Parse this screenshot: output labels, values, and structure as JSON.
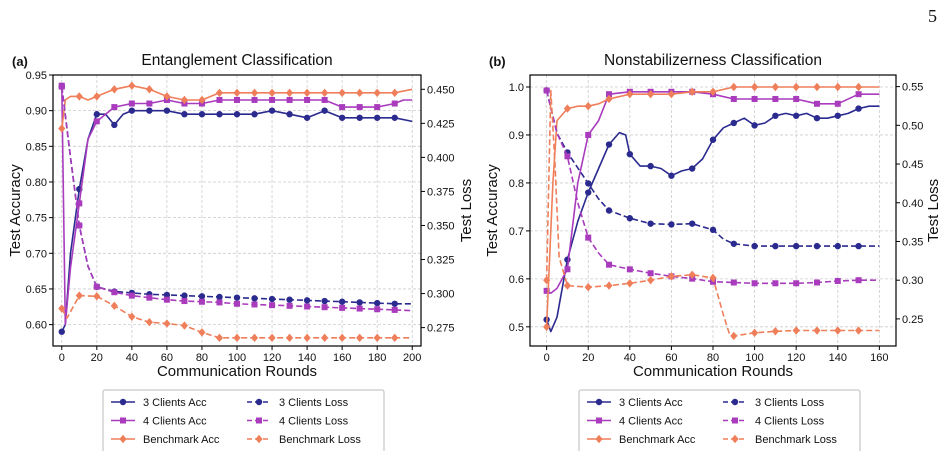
{
  "page_number": "5",
  "legend_items": {
    "acc3": "3 Clients Acc",
    "acc4": "4 Clients Acc",
    "accB": "Benchmark Acc",
    "loss3": "3 Clients Loss",
    "loss4": "4 Clients Loss",
    "lossB": "Benchmark Loss"
  },
  "colors": {
    "three_clients": "#2b2a8f",
    "four_clients": "#a93bbd",
    "benchmark": "#ef7f5a"
  },
  "chart_data": [
    {
      "panel": "(a)",
      "type": "line",
      "title": "Entanglement Classification",
      "xlabel": "Communication Rounds",
      "ylabel": "Test Accuracy",
      "y2label": "Test Loss",
      "xlim": [
        -5,
        205
      ],
      "ylim": [
        0.57,
        0.95
      ],
      "y2lim": [
        0.2615,
        0.4605
      ],
      "xticks": [
        0,
        20,
        40,
        60,
        80,
        100,
        120,
        140,
        160,
        180,
        200
      ],
      "yticks": [
        0.6,
        0.65,
        0.7,
        0.75,
        0.8,
        0.85,
        0.9,
        0.95
      ],
      "ytick_labels": [
        "0.60",
        "0.65",
        "0.70",
        "0.75",
        "0.80",
        "0.85",
        "0.90",
        "0.95"
      ],
      "y2ticks": [
        0.275,
        0.3,
        0.325,
        0.35,
        0.375,
        0.4,
        0.425,
        0.45
      ],
      "y2tick_labels": [
        "0.275",
        "0.300",
        "0.325",
        "0.350",
        "0.375",
        "0.400",
        "0.425",
        "0.450"
      ],
      "grid": true,
      "legend": "below",
      "series": [
        {
          "name": "3 Clients Acc",
          "axis": "left",
          "style": "solid",
          "marker": "circle",
          "color_key": "three_clients",
          "x": [
            0,
            2,
            5,
            10,
            15,
            20,
            25,
            30,
            35,
            40,
            50,
            60,
            70,
            80,
            90,
            100,
            110,
            120,
            130,
            140,
            150,
            160,
            170,
            180,
            190,
            200
          ],
          "y": [
            0.59,
            0.6,
            0.7,
            0.79,
            0.86,
            0.895,
            0.895,
            0.88,
            0.895,
            0.9,
            0.9,
            0.9,
            0.895,
            0.895,
            0.895,
            0.895,
            0.895,
            0.9,
            0.895,
            0.89,
            0.9,
            0.89,
            0.89,
            0.89,
            0.89,
            0.885
          ],
          "marker_x": [
            0,
            10,
            20,
            30,
            40,
            50,
            60,
            70,
            80,
            90,
            100,
            110,
            120,
            130,
            140,
            150,
            160,
            170,
            180,
            190
          ]
        },
        {
          "name": "4 Clients Acc",
          "axis": "left",
          "style": "solid",
          "marker": "square",
          "color_key": "four_clients",
          "x": [
            0,
            2,
            5,
            10,
            15,
            20,
            25,
            30,
            40,
            50,
            60,
            70,
            80,
            90,
            100,
            110,
            120,
            130,
            140,
            150,
            160,
            170,
            180,
            190,
            195,
            200
          ],
          "y": [
            0.935,
            0.6,
            0.68,
            0.77,
            0.86,
            0.885,
            0.895,
            0.905,
            0.91,
            0.91,
            0.915,
            0.91,
            0.91,
            0.915,
            0.915,
            0.915,
            0.915,
            0.915,
            0.915,
            0.915,
            0.905,
            0.905,
            0.905,
            0.91,
            0.915,
            0.915
          ],
          "marker_x": [
            0,
            10,
            20,
            30,
            40,
            50,
            60,
            70,
            80,
            90,
            100,
            110,
            120,
            130,
            140,
            150,
            160,
            170,
            180,
            190
          ]
        },
        {
          "name": "Benchmark Acc",
          "axis": "left",
          "style": "solid",
          "marker": "diamond",
          "color_key": "benchmark",
          "x": [
            0,
            2,
            5,
            10,
            15,
            20,
            25,
            30,
            40,
            50,
            60,
            70,
            80,
            90,
            100,
            110,
            120,
            130,
            140,
            150,
            160,
            170,
            180,
            190,
            200
          ],
          "y": [
            0.875,
            0.915,
            0.92,
            0.92,
            0.915,
            0.92,
            0.925,
            0.93,
            0.935,
            0.93,
            0.92,
            0.915,
            0.915,
            0.925,
            0.925,
            0.925,
            0.925,
            0.925,
            0.925,
            0.925,
            0.925,
            0.925,
            0.925,
            0.925,
            0.93
          ],
          "marker_x": [
            0,
            10,
            20,
            30,
            40,
            50,
            60,
            70,
            80,
            90,
            100,
            110,
            120,
            130,
            140,
            150,
            160,
            170,
            180,
            190
          ]
        },
        {
          "name": "3 Clients Loss",
          "axis": "right",
          "style": "dashed",
          "marker": "circle",
          "color_key": "three_clients",
          "x": [
            0,
            5,
            10,
            15,
            20,
            30,
            40,
            50,
            60,
            70,
            80,
            90,
            100,
            110,
            120,
            130,
            140,
            150,
            160,
            170,
            180,
            190,
            200
          ],
          "y": [
            0.452,
            0.4,
            0.35,
            0.32,
            0.305,
            0.3015,
            0.3005,
            0.2995,
            0.299,
            0.2985,
            0.298,
            0.2975,
            0.297,
            0.2965,
            0.296,
            0.2955,
            0.295,
            0.2945,
            0.294,
            0.2935,
            0.293,
            0.2925,
            0.2925
          ],
          "marker_x": [
            0,
            10,
            20,
            30,
            40,
            50,
            60,
            70,
            80,
            90,
            100,
            110,
            120,
            130,
            140,
            150,
            160,
            170,
            180,
            190
          ]
        },
        {
          "name": "4 Clients Loss",
          "axis": "right",
          "style": "dashed",
          "marker": "square",
          "color_key": "four_clients",
          "x": [
            0,
            5,
            10,
            15,
            20,
            30,
            40,
            50,
            60,
            70,
            80,
            90,
            100,
            110,
            120,
            130,
            140,
            150,
            160,
            170,
            180,
            190,
            200
          ],
          "y": [
            0.452,
            0.4,
            0.35,
            0.32,
            0.305,
            0.301,
            0.2985,
            0.297,
            0.2955,
            0.2945,
            0.294,
            0.2935,
            0.2925,
            0.292,
            0.2915,
            0.291,
            0.2905,
            0.29,
            0.2895,
            0.289,
            0.2885,
            0.288,
            0.2875
          ],
          "marker_x": [
            0,
            10,
            20,
            30,
            40,
            50,
            60,
            70,
            80,
            90,
            100,
            110,
            120,
            130,
            140,
            150,
            160,
            170,
            180,
            190
          ]
        },
        {
          "name": "Benchmark Loss",
          "axis": "right",
          "style": "dashed",
          "marker": "diamond",
          "color_key": "benchmark",
          "x": [
            0,
            3,
            10,
            20,
            30,
            40,
            50,
            60,
            70,
            80,
            90,
            100,
            110,
            120,
            130,
            140,
            150,
            160,
            170,
            180,
            190,
            200
          ],
          "y": [
            0.289,
            0.282,
            0.2985,
            0.298,
            0.291,
            0.283,
            0.279,
            0.278,
            0.2765,
            0.2715,
            0.2675,
            0.2675,
            0.2675,
            0.2675,
            0.2675,
            0.2675,
            0.2675,
            0.2675,
            0.2675,
            0.2675,
            0.2675,
            0.2675
          ],
          "marker_x": [
            0,
            10,
            20,
            30,
            40,
            50,
            60,
            70,
            80,
            90,
            100,
            110,
            120,
            130,
            140,
            150,
            160,
            170,
            180,
            190
          ]
        }
      ]
    },
    {
      "panel": "(b)",
      "type": "line",
      "title": "Nonstabilizerness Classification",
      "xlabel": "Communication Rounds",
      "ylabel": "Test Accuracy",
      "y2label": "Test Loss",
      "xlim": [
        -8,
        168
      ],
      "ylim": [
        0.46,
        1.025
      ],
      "y2lim": [
        0.215,
        0.565
      ],
      "xticks": [
        0,
        20,
        40,
        60,
        80,
        100,
        120,
        140,
        160
      ],
      "yticks": [
        0.5,
        0.6,
        0.7,
        0.8,
        0.9,
        1.0
      ],
      "ytick_labels": [
        "0.5",
        "0.6",
        "0.7",
        "0.8",
        "0.9",
        "1.0"
      ],
      "y2ticks": [
        0.25,
        0.3,
        0.35,
        0.4,
        0.45,
        0.5,
        0.55
      ],
      "y2tick_labels": [
        "0.25",
        "0.30",
        "0.35",
        "0.40",
        "0.45",
        "0.50",
        "0.55"
      ],
      "grid": true,
      "legend": "below",
      "series": [
        {
          "name": "3 Clients Acc",
          "axis": "left",
          "style": "solid",
          "marker": "circle",
          "color_key": "three_clients",
          "x": [
            0,
            2,
            5,
            10,
            15,
            20,
            25,
            30,
            35,
            38,
            40,
            45,
            50,
            55,
            60,
            65,
            70,
            75,
            80,
            85,
            90,
            95,
            100,
            105,
            110,
            115,
            120,
            125,
            130,
            135,
            140,
            145,
            150,
            155,
            160
          ],
          "y": [
            0.515,
            0.49,
            0.52,
            0.64,
            0.72,
            0.78,
            0.83,
            0.88,
            0.905,
            0.9,
            0.86,
            0.835,
            0.835,
            0.83,
            0.815,
            0.825,
            0.83,
            0.85,
            0.89,
            0.915,
            0.925,
            0.935,
            0.92,
            0.925,
            0.94,
            0.945,
            0.94,
            0.945,
            0.935,
            0.935,
            0.94,
            0.945,
            0.955,
            0.96,
            0.96
          ],
          "marker_x": [
            0,
            10,
            20,
            30,
            40,
            50,
            60,
            70,
            80,
            90,
            100,
            110,
            120,
            130,
            140,
            150
          ]
        },
        {
          "name": "4 Clients Acc",
          "axis": "left",
          "style": "solid",
          "marker": "square",
          "color_key": "four_clients",
          "x": [
            0,
            2,
            5,
            10,
            15,
            20,
            25,
            30,
            40,
            50,
            60,
            70,
            80,
            90,
            100,
            110,
            120,
            130,
            140,
            150,
            160
          ],
          "y": [
            0.575,
            0.57,
            0.58,
            0.62,
            0.8,
            0.9,
            0.93,
            0.985,
            0.99,
            0.99,
            0.99,
            0.99,
            0.985,
            0.975,
            0.975,
            0.975,
            0.975,
            0.965,
            0.965,
            0.985,
            0.985
          ],
          "marker_x": [
            0,
            10,
            20,
            30,
            40,
            50,
            60,
            70,
            80,
            90,
            100,
            110,
            120,
            130,
            140,
            150
          ]
        },
        {
          "name": "Benchmark Acc",
          "axis": "left",
          "style": "solid",
          "marker": "diamond",
          "color_key": "benchmark",
          "x": [
            0,
            3,
            5,
            10,
            15,
            20,
            25,
            30,
            40,
            50,
            60,
            70,
            80,
            90,
            100,
            110,
            120,
            130,
            140,
            150,
            160
          ],
          "y": [
            0.5,
            0.8,
            0.93,
            0.955,
            0.96,
            0.96,
            0.965,
            0.975,
            0.985,
            0.985,
            0.985,
            0.99,
            0.99,
            1.0,
            1.0,
            1.0,
            1.0,
            1.0,
            1.0,
            1.0,
            1.0
          ],
          "marker_x": [
            0,
            10,
            20,
            30,
            40,
            50,
            60,
            70,
            80,
            90,
            100,
            110,
            120,
            130,
            140,
            150
          ]
        },
        {
          "name": "3 Clients Loss",
          "axis": "right",
          "style": "dashed",
          "marker": "circle",
          "color_key": "three_clients",
          "x": [
            0,
            5,
            10,
            15,
            20,
            25,
            30,
            40,
            50,
            60,
            70,
            80,
            85,
            90,
            100,
            110,
            120,
            130,
            140,
            150,
            160
          ],
          "y": [
            0.545,
            0.49,
            0.465,
            0.445,
            0.425,
            0.405,
            0.39,
            0.38,
            0.373,
            0.372,
            0.373,
            0.365,
            0.353,
            0.347,
            0.344,
            0.344,
            0.344,
            0.344,
            0.344,
            0.344,
            0.344
          ],
          "marker_x": [
            0,
            10,
            20,
            30,
            40,
            50,
            60,
            70,
            80,
            90,
            100,
            110,
            120,
            130,
            140,
            150
          ]
        },
        {
          "name": "4 Clients Loss",
          "axis": "right",
          "style": "dashed",
          "marker": "square",
          "color_key": "four_clients",
          "x": [
            0,
            5,
            10,
            15,
            20,
            25,
            30,
            40,
            50,
            60,
            70,
            80,
            90,
            100,
            110,
            120,
            130,
            140,
            150,
            160
          ],
          "y": [
            0.545,
            0.49,
            0.46,
            0.4,
            0.355,
            0.335,
            0.32,
            0.314,
            0.309,
            0.305,
            0.302,
            0.298,
            0.297,
            0.296,
            0.296,
            0.296,
            0.297,
            0.299,
            0.3,
            0.3
          ],
          "marker_x": [
            0,
            10,
            20,
            30,
            40,
            50,
            60,
            70,
            80,
            90,
            100,
            110,
            120,
            130,
            140,
            150
          ]
        },
        {
          "name": "Benchmark Loss",
          "axis": "right",
          "style": "dashed",
          "marker": "diamond",
          "color_key": "benchmark",
          "x": [
            0,
            2,
            4,
            6,
            10,
            20,
            30,
            40,
            50,
            60,
            70,
            80,
            85,
            88,
            90,
            100,
            110,
            120,
            130,
            140,
            150,
            160
          ],
          "y": [
            0.3,
            0.545,
            0.45,
            0.33,
            0.293,
            0.291,
            0.293,
            0.296,
            0.3,
            0.305,
            0.307,
            0.303,
            0.255,
            0.23,
            0.228,
            0.232,
            0.234,
            0.235,
            0.235,
            0.235,
            0.235,
            0.235
          ],
          "marker_x": [
            0,
            10,
            20,
            30,
            40,
            50,
            60,
            70,
            80,
            90,
            100,
            110,
            120,
            130,
            140,
            150
          ]
        }
      ]
    }
  ]
}
